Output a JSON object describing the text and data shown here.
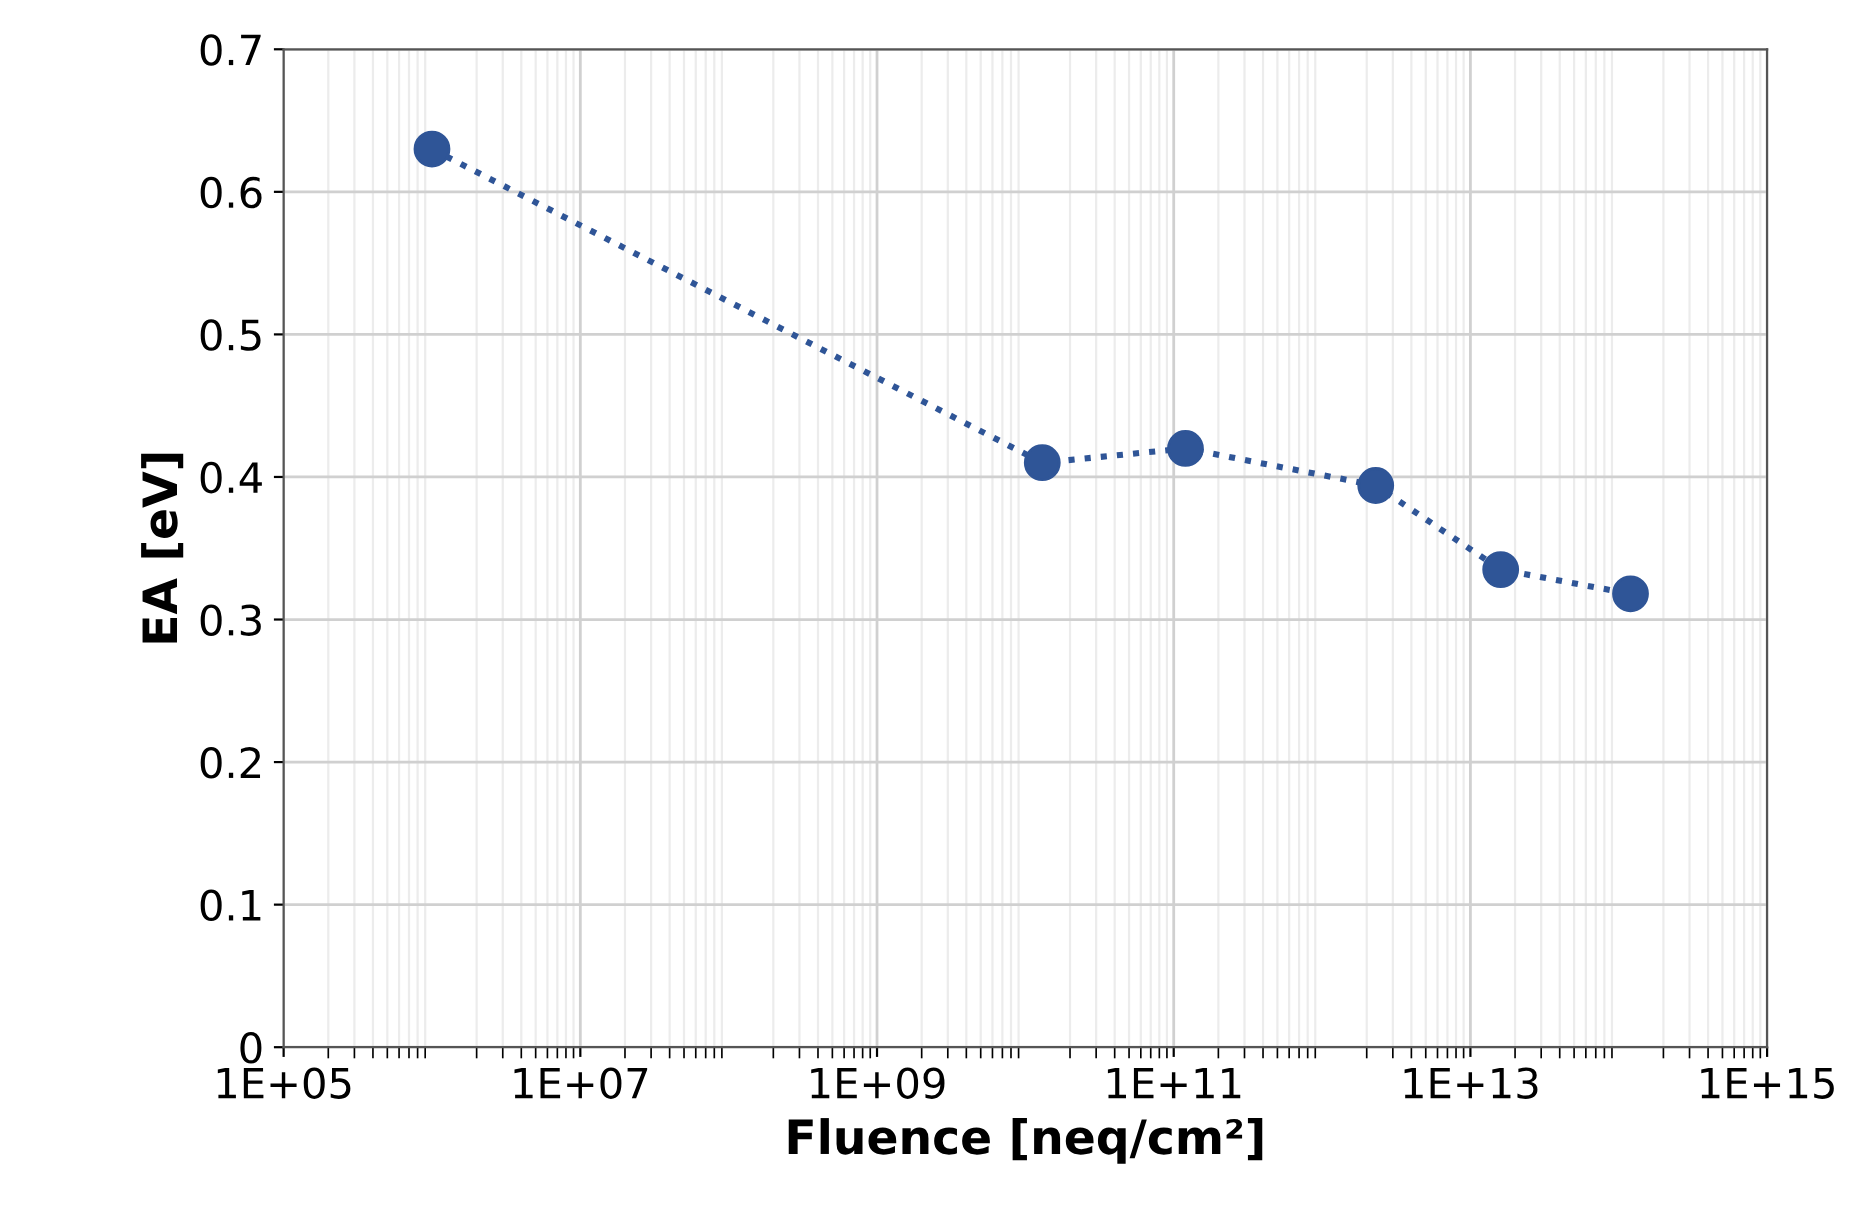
{
  "chart_data": {
    "type": "line",
    "xlabel": "Fluence [neq/cm²]",
    "ylabel": "EA [eV]",
    "log": "x",
    "xlim": [
      100000,
      1000000000000000.0
    ],
    "xticks": [
      {
        "value": 100000,
        "label": "1E+05"
      },
      {
        "value": 10000000,
        "label": "1E+07"
      },
      {
        "value": 1000000000,
        "label": "1E+09"
      },
      {
        "value": 100000000000,
        "label": "1E+11"
      },
      {
        "value": 10000000000000,
        "label": "1E+13"
      },
      {
        "value": 1000000000000000.0,
        "label": "1E+15"
      }
    ],
    "ylim": [
      0,
      0.7
    ],
    "yticks": [
      0,
      0.1,
      0.2,
      0.3,
      0.4,
      0.5,
      0.6,
      0.7
    ],
    "grid": true,
    "marker": "circle",
    "line_style": "dotted",
    "series": [
      {
        "color": "#2f5597",
        "x": [
          1000000,
          13000000000,
          120000000000,
          2300000000000,
          16000000000000,
          120000000000000
        ],
        "values": [
          0.63,
          0.41,
          0.42,
          0.394,
          0.335,
          0.318
        ]
      }
    ]
  }
}
